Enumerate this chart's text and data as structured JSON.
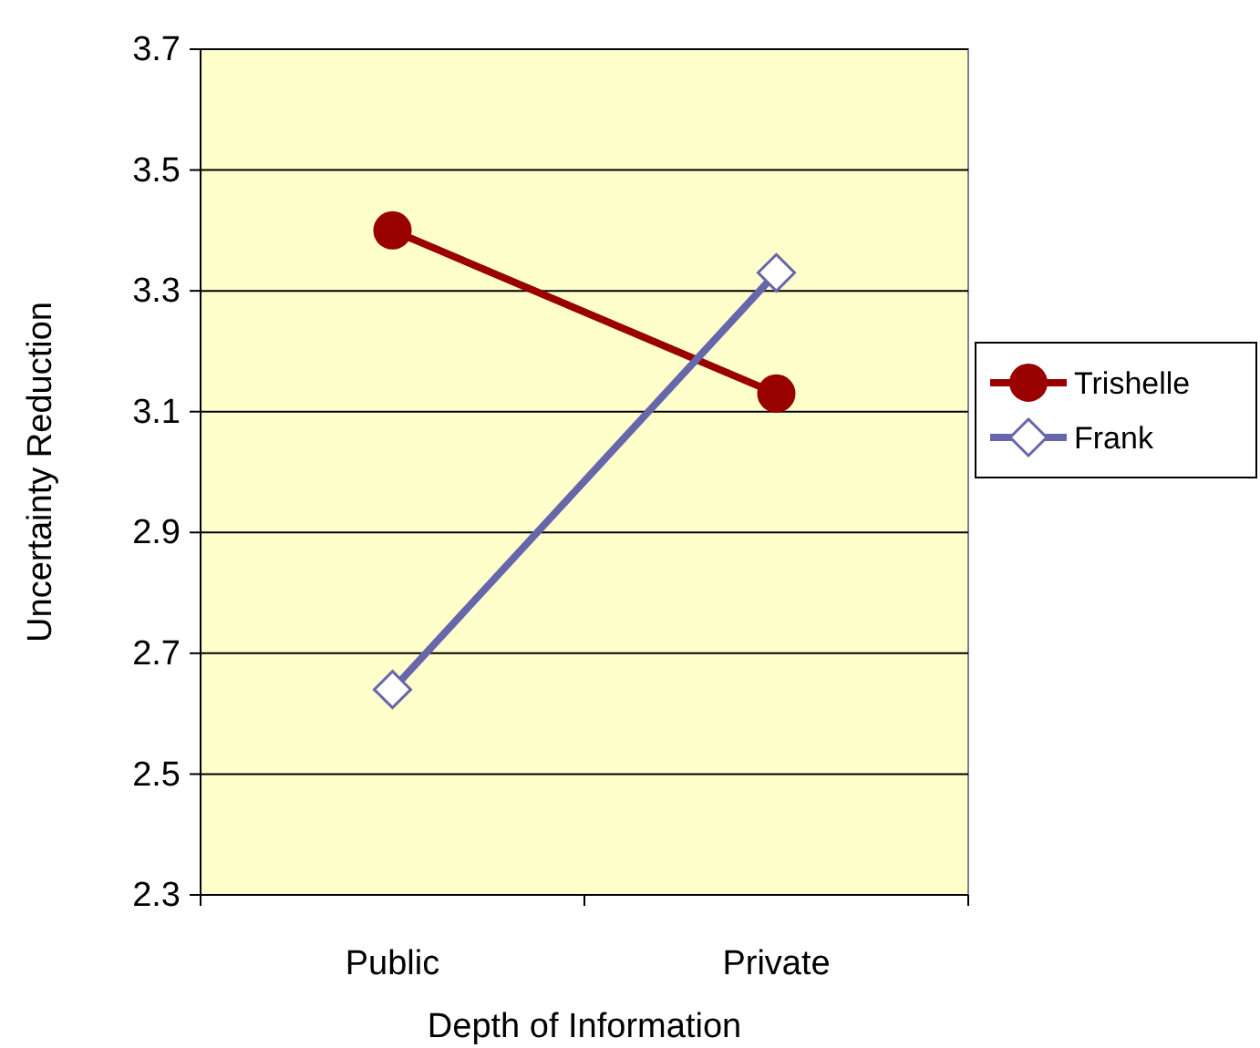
{
  "chart_data": {
    "type": "line",
    "xlabel": "Depth of Information",
    "ylabel": "Uncertainty Reduction",
    "categories": [
      "Public",
      "Private"
    ],
    "series": [
      {
        "name": "Trishelle",
        "color": "#990000",
        "values": [
          3.4,
          3.13
        ],
        "marker": "circle"
      },
      {
        "name": "Frank",
        "color": "#6666aa",
        "values": [
          2.64,
          3.33
        ],
        "marker": "diamond"
      }
    ],
    "ylim": [
      2.3,
      3.7
    ],
    "yticks": [
      2.3,
      2.5,
      2.7,
      2.9,
      3.1,
      3.3,
      3.5,
      3.7
    ],
    "grid": "y",
    "legend": "right"
  }
}
